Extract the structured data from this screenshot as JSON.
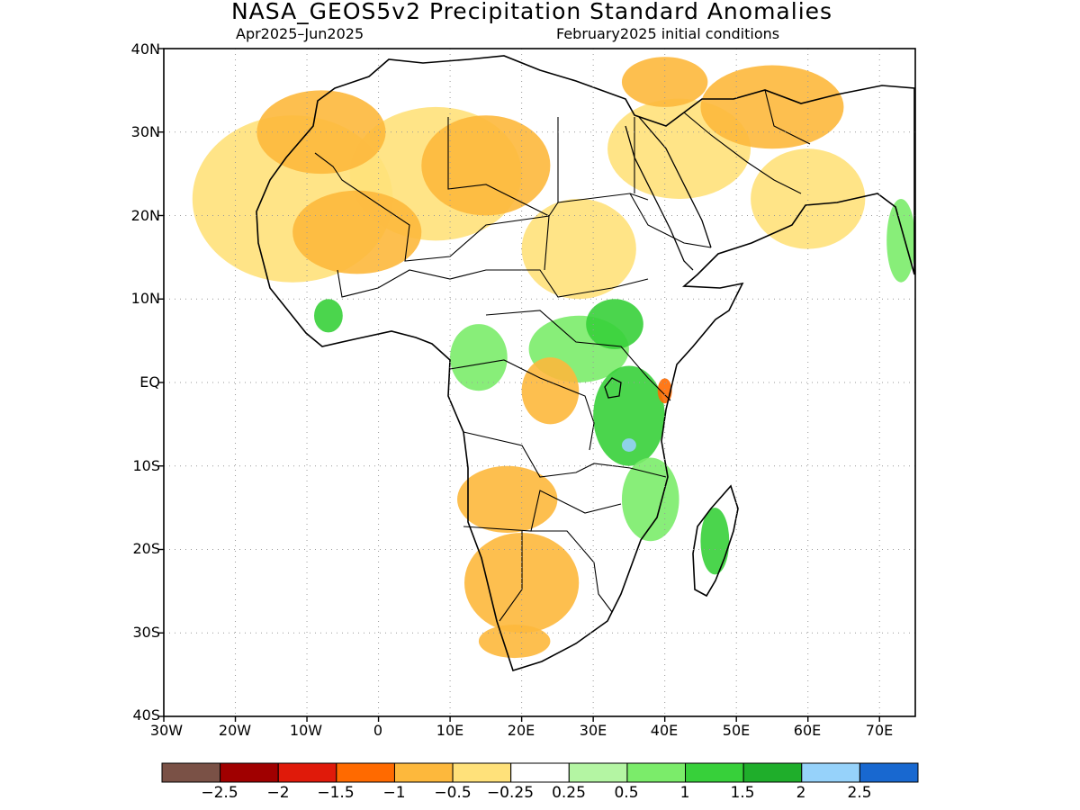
{
  "header": {
    "title": "NASA_GEOS5v2 Precipitation Standard Anomalies",
    "period": "Apr2025–Jun2025",
    "initial_conditions": "February2025 initial conditions"
  },
  "axes": {
    "lat_labels": [
      "40N",
      "30N",
      "20N",
      "10N",
      "EQ",
      "10S",
      "20S",
      "30S",
      "40S"
    ],
    "lon_labels": [
      "30W",
      "20W",
      "10W",
      "0",
      "10E",
      "20E",
      "30E",
      "40E",
      "50E",
      "60E",
      "70E"
    ],
    "lat_range": [
      -40,
      40
    ],
    "lon_range": [
      -30,
      75
    ],
    "grid": "dotted"
  },
  "colorbar": {
    "colors": [
      "#7a5146",
      "#a00000",
      "#e01a0a",
      "#ff6a00",
      "#fdb83c",
      "#ffe17a",
      "#ffffff",
      "#b4f5a3",
      "#7bec6a",
      "#37d03a",
      "#1fae2b",
      "#96d2fa",
      "#1868d0"
    ],
    "labels": [
      "−2.5",
      "−2",
      "−1.5",
      "−1",
      "−0.5",
      "−0.25",
      "0.25",
      "0.5",
      "1",
      "1.5",
      "2",
      "2.5"
    ]
  },
  "anomaly_regions": [
    {
      "level": "-0.25",
      "color": "#ffe17a",
      "lon": -12,
      "lat": 22,
      "rx": 14,
      "ry": 10
    },
    {
      "level": "-0.25",
      "color": "#ffe17a",
      "lon": 8,
      "lat": 25,
      "rx": 12,
      "ry": 8
    },
    {
      "level": "-0.5",
      "color": "#fdb83c",
      "lon": -8,
      "lat": 30,
      "rx": 9,
      "ry": 5
    },
    {
      "level": "-0.5",
      "color": "#fdb83c",
      "lon": 15,
      "lat": 26,
      "rx": 9,
      "ry": 6
    },
    {
      "level": "-0.5",
      "color": "#fdb83c",
      "lon": -3,
      "lat": 18,
      "rx": 9,
      "ry": 5
    },
    {
      "level": "-0.25",
      "color": "#ffe17a",
      "lon": 42,
      "lat": 28,
      "rx": 10,
      "ry": 6
    },
    {
      "level": "-0.5",
      "color": "#fdb83c",
      "lon": 55,
      "lat": 33,
      "rx": 10,
      "ry": 5
    },
    {
      "level": "-0.5",
      "color": "#fdb83c",
      "lon": 40,
      "lat": 36,
      "rx": 6,
      "ry": 3
    },
    {
      "level": "-0.25",
      "color": "#ffe17a",
      "lon": 60,
      "lat": 22,
      "rx": 8,
      "ry": 6
    },
    {
      "level": "-0.25",
      "color": "#ffe17a",
      "lon": 28,
      "lat": 16,
      "rx": 8,
      "ry": 6
    },
    {
      "level": "0.5",
      "color": "#7bec6a",
      "lon": 28,
      "lat": 4,
      "rx": 7,
      "ry": 4
    },
    {
      "level": "1",
      "color": "#37d03a",
      "lon": 33,
      "lat": 7,
      "rx": 4,
      "ry": 3
    },
    {
      "level": "0.5",
      "color": "#7bec6a",
      "lon": 14,
      "lat": 3,
      "rx": 4,
      "ry": 4
    },
    {
      "level": "1",
      "color": "#37d03a",
      "lon": -7,
      "lat": 8,
      "rx": 2,
      "ry": 2
    },
    {
      "level": "1",
      "color": "#37d03a",
      "lon": 35,
      "lat": -4,
      "rx": 5,
      "ry": 6
    },
    {
      "level": "2",
      "color": "#96d2fa",
      "lon": 35,
      "lat": -7.5,
      "rx": 1,
      "ry": 0.8
    },
    {
      "level": "0.5",
      "color": "#7bec6a",
      "lon": 38,
      "lat": -14,
      "rx": 4,
      "ry": 5
    },
    {
      "level": "1",
      "color": "#37d03a",
      "lon": 47,
      "lat": -19,
      "rx": 2,
      "ry": 4
    },
    {
      "level": "-0.5",
      "color": "#fdb83c",
      "lon": 18,
      "lat": -14,
      "rx": 7,
      "ry": 4
    },
    {
      "level": "-0.5",
      "color": "#fdb83c",
      "lon": 20,
      "lat": -24,
      "rx": 8,
      "ry": 6
    },
    {
      "level": "-0.5",
      "color": "#fdb83c",
      "lon": 19,
      "lat": -31,
      "rx": 5,
      "ry": 2
    },
    {
      "level": "-1",
      "color": "#ff6a00",
      "lon": 40,
      "lat": -1,
      "rx": 1,
      "ry": 1.5
    },
    {
      "level": "-0.5",
      "color": "#fdb83c",
      "lon": 24,
      "lat": -1,
      "rx": 4,
      "ry": 4
    },
    {
      "level": "0.5",
      "color": "#7bec6a",
      "lon": 73,
      "lat": 17,
      "rx": 2,
      "ry": 5
    }
  ]
}
